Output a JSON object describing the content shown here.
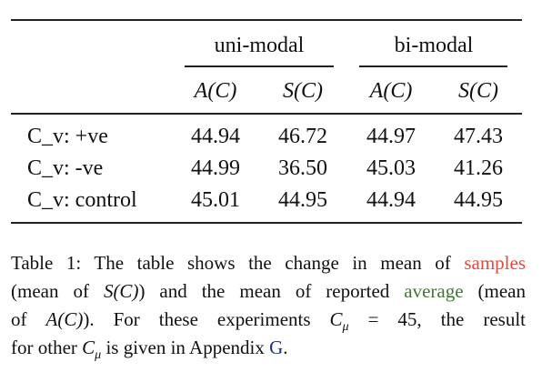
{
  "table": {
    "groups": [
      "uni-modal",
      "bi-modal"
    ],
    "subheaders": [
      "A(C)",
      "S(C)",
      "A(C)",
      "S(C)"
    ],
    "rows": [
      [
        "C_v: +ve",
        "44.94",
        "46.72",
        "44.97",
        "47.43"
      ],
      [
        "C_v: -ve",
        "44.99",
        "36.50",
        "45.03",
        "41.26"
      ],
      [
        "C_v: control",
        "45.01",
        "44.95",
        "44.94",
        "44.95"
      ]
    ]
  },
  "caption": {
    "lines": [
      [
        "Table 1: The table shows the change in mean of ",
        "samples"
      ],
      [
        "(mean of ",
        "S(C)",
        ") and the mean of reported ",
        "average",
        " (mean"
      ],
      [
        "of ",
        "A(C)",
        "). For these experiments ",
        "C",
        "μ",
        " = 45, the result"
      ],
      [
        "for other ",
        "C",
        "μ",
        " is given in Appendix ",
        "G",
        "."
      ]
    ]
  }
}
